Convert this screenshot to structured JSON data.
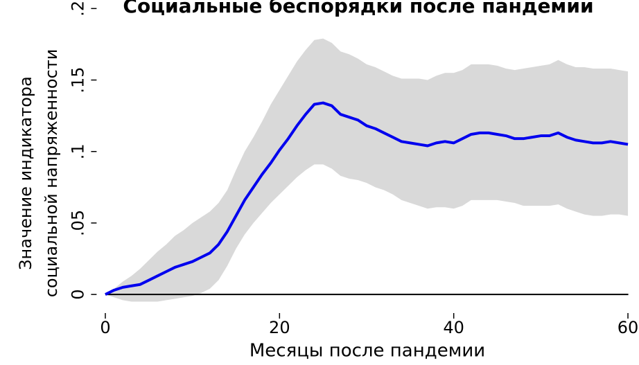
{
  "chart_data": {
    "type": "line",
    "title": "Социальные беспорядки после пандемии",
    "ylabel": [
      "Значение индикатора",
      "социальной напряженности"
    ],
    "xlabel": "Месяцы после пандемии",
    "x": [
      0,
      1,
      2,
      3,
      4,
      5,
      6,
      7,
      8,
      9,
      10,
      11,
      12,
      13,
      14,
      15,
      16,
      17,
      18,
      19,
      20,
      21,
      22,
      23,
      24,
      25,
      26,
      27,
      28,
      29,
      30,
      31,
      32,
      33,
      34,
      35,
      36,
      37,
      38,
      39,
      40,
      41,
      42,
      43,
      44,
      45,
      46,
      47,
      48,
      49,
      50,
      51,
      52,
      53,
      54,
      55,
      56,
      57,
      58,
      59,
      60
    ],
    "series": [
      {
        "color": "#0000ee",
        "values": [
          0,
          0.003,
          0.005,
          0.006,
          0.007,
          0.01,
          0.013,
          0.016,
          0.019,
          0.021,
          0.023,
          0.026,
          0.029,
          0.035,
          0.044,
          0.055,
          0.066,
          0.075,
          0.084,
          0.092,
          0.101,
          0.109,
          0.118,
          0.126,
          0.133,
          0.134,
          0.132,
          0.126,
          0.124,
          0.122,
          0.118,
          0.116,
          0.113,
          0.11,
          0.107,
          0.106,
          0.105,
          0.104,
          0.106,
          0.107,
          0.106,
          0.109,
          0.112,
          0.113,
          0.113,
          0.112,
          0.111,
          0.109,
          0.109,
          0.11,
          0.111,
          0.111,
          0.113,
          0.11,
          0.108,
          0.107,
          0.106,
          0.106,
          0.107,
          0.106,
          0.105
        ]
      }
    ],
    "band": {
      "color": "#d9d9d9",
      "upper": [
        0,
        0.004,
        0.009,
        0.013,
        0.018,
        0.024,
        0.03,
        0.035,
        0.041,
        0.045,
        0.05,
        0.054,
        0.058,
        0.064,
        0.073,
        0.087,
        0.1,
        0.11,
        0.121,
        0.133,
        0.143,
        0.153,
        0.163,
        0.171,
        0.178,
        0.179,
        0.176,
        0.17,
        0.168,
        0.165,
        0.161,
        0.159,
        0.156,
        0.153,
        0.151,
        0.151,
        0.151,
        0.15,
        0.153,
        0.155,
        0.155,
        0.157,
        0.161,
        0.161,
        0.161,
        0.16,
        0.158,
        0.157,
        0.158,
        0.159,
        0.16,
        0.161,
        0.164,
        0.161,
        0.159,
        0.159,
        0.158,
        0.158,
        0.158,
        0.157,
        0.156
      ],
      "lower": [
        0,
        -0.002,
        -0.004,
        -0.005,
        -0.005,
        -0.005,
        -0.005,
        -0.004,
        -0.003,
        -0.002,
        -0.001,
        0.001,
        0.004,
        0.01,
        0.02,
        0.032,
        0.042,
        0.05,
        0.057,
        0.064,
        0.07,
        0.076,
        0.082,
        0.087,
        0.091,
        0.091,
        0.088,
        0.083,
        0.081,
        0.08,
        0.078,
        0.075,
        0.073,
        0.07,
        0.066,
        0.064,
        0.062,
        0.06,
        0.061,
        0.061,
        0.06,
        0.062,
        0.066,
        0.066,
        0.066,
        0.066,
        0.065,
        0.064,
        0.062,
        0.062,
        0.062,
        0.062,
        0.063,
        0.06,
        0.058,
        0.056,
        0.055,
        0.055,
        0.056,
        0.056,
        0.055
      ]
    },
    "hline": 0,
    "xlim": [
      -1,
      61
    ],
    "xticks": [
      0,
      20,
      40,
      60
    ],
    "ylim": [
      -0.013,
      0.205
    ],
    "yticks": [
      0,
      {
        "value": 0.05,
        "label": ".05"
      },
      {
        "value": 0.1,
        "label": ".1"
      },
      {
        "value": 0.15,
        "label": ".15"
      },
      {
        "value": 0.2,
        "label": ".2"
      }
    ]
  }
}
